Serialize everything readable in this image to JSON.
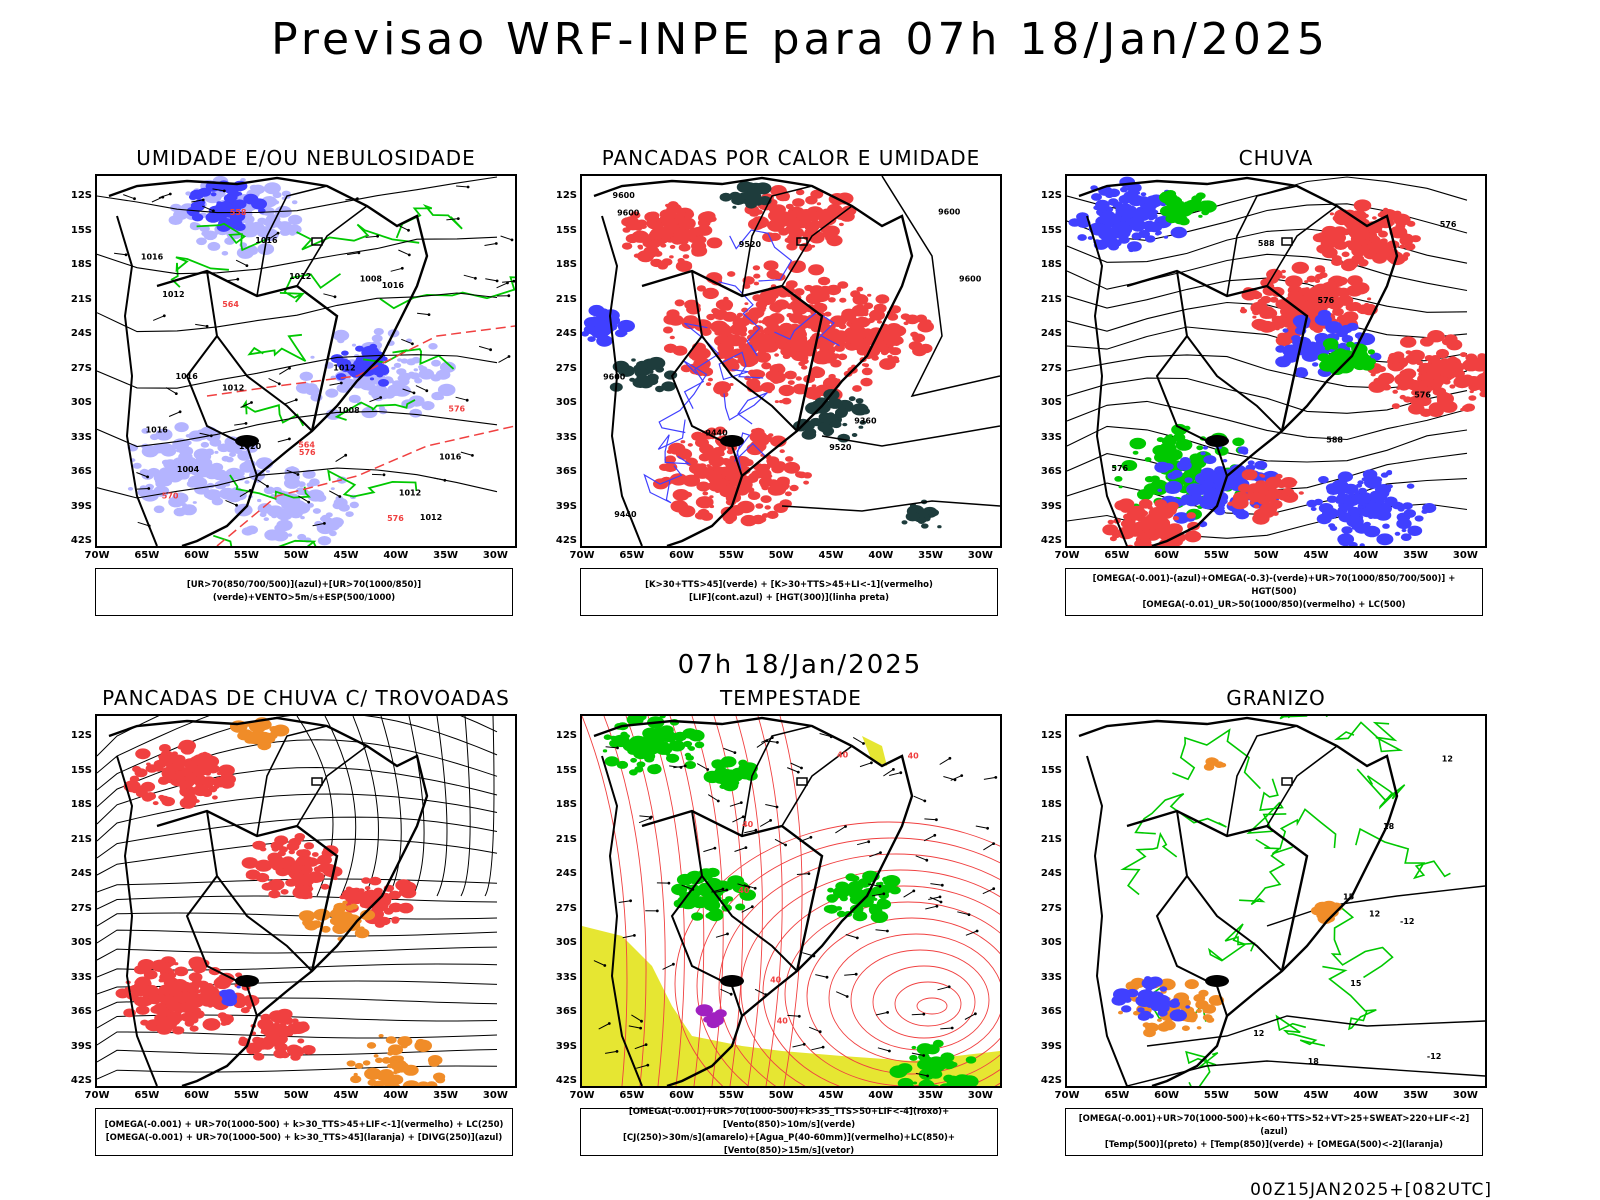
{
  "main_title": "Previsao WRF-INPE  para 07h 18/Jan/2025",
  "mid_title": "07h 18/Jan/2025",
  "footer": "00Z15JAN2025+[082UTC]",
  "lat_labels": [
    "12S",
    "15S",
    "18S",
    "21S",
    "24S",
    "27S",
    "30S",
    "33S",
    "36S",
    "39S",
    "42S"
  ],
  "lon_labels": [
    "70W",
    "65W",
    "60W",
    "55W",
    "50W",
    "45W",
    "40W",
    "35W",
    "30W"
  ],
  "panels": [
    {
      "id": "umidade",
      "title": "UMIDADE E/OU NEBULOSIDADE",
      "legend": [
        "[UR>70(850/700/500)](azul)+[UR>70(1000/850)](verde)+VENTO>5m/s+ESP(500/1000)"
      ],
      "labels": [
        "1012",
        "1016",
        "1008",
        "1016",
        "1016",
        "1012",
        "1004",
        "1012",
        "1016",
        "1012",
        "1008",
        "1012",
        "1020",
        "1016",
        "1012",
        "1016",
        "576",
        "576",
        "576",
        "570",
        "564",
        "564",
        "558"
      ]
    },
    {
      "id": "pancadas-calor",
      "title": "PANCADAS POR CALOR E UMIDADE",
      "legend": [
        "[K>30+TTS>45](verde) + [K>30+TTS>45+LI<-1](vermelho)",
        "[LIF](cont.azul) + [HGT(300)](linha preta)"
      ],
      "labels": [
        "9600",
        "9600",
        "9600",
        "9600",
        "9600",
        "9520",
        "9520",
        "9440",
        "9440",
        "9360"
      ]
    },
    {
      "id": "chuva",
      "title": "CHUVA",
      "legend": [
        "[OMEGA(-0.001)-(azul)+OMEGA(-0.3)-(verde)+UR>70(1000/850/700/500)] + HGT(500)",
        "[OMEGA(-0.01)_UR>50(1000/850)(vermelho) + LC(500)"
      ],
      "labels": [
        "588",
        "588",
        "576",
        "576",
        "576",
        "576"
      ]
    },
    {
      "id": "pancadas-trovoadas",
      "title": "PANCADAS DE CHUVA C/ TROVOADAS",
      "legend": [
        "[OMEGA(-0.001) + UR>70(1000-500) + k>30_TTS>45+LIF<-1](vermelho) + LC(250)",
        "[OMEGA(-0.001) + UR>70(1000-500) + k>30_TTS>45](laranja) + [DIVG(250)](azul)"
      ],
      "labels": []
    },
    {
      "id": "tempestade",
      "title": "TEMPESTADE",
      "legend": [
        "[OMEGA(-0.001)+UR>70(1000-500)+k>35_TTS>50+LIF<-4](roxo)+[Vento(850)>10m/s](verde)",
        "[CJ(250)>30m/s](amarelo)+[Agua_P(40-60mm)](vermelho)+LC(850)+[Vento(850)>15m/s](vetor)"
      ],
      "labels": [
        "40",
        "40",
        "40",
        "40",
        "40",
        "40"
      ]
    },
    {
      "id": "granizo",
      "title": "GRANIZO",
      "legend": [
        "[OMEGA(-0.001)+UR>70(1000-500)+k<60+TTS>52+VT>25+SWEAT>220+LIF<-2](azul)",
        "[Temp(500)](preto) + [Temp(850)](verde) + [OMEGA(500)<-2](laranja)"
      ],
      "labels": [
        "-12",
        "12",
        "15",
        "12",
        "15",
        "18",
        "18",
        "-12",
        "12"
      ]
    }
  ],
  "colors": {
    "black": "#000000",
    "blue": "#4040ff",
    "lightblue": "#b4b4ff",
    "green": "#00c800",
    "red": "#f04040",
    "darkteal": "#1e3c3c",
    "orange": "#f08c28",
    "yellow": "#e6e632",
    "purple": "#a020c0"
  }
}
